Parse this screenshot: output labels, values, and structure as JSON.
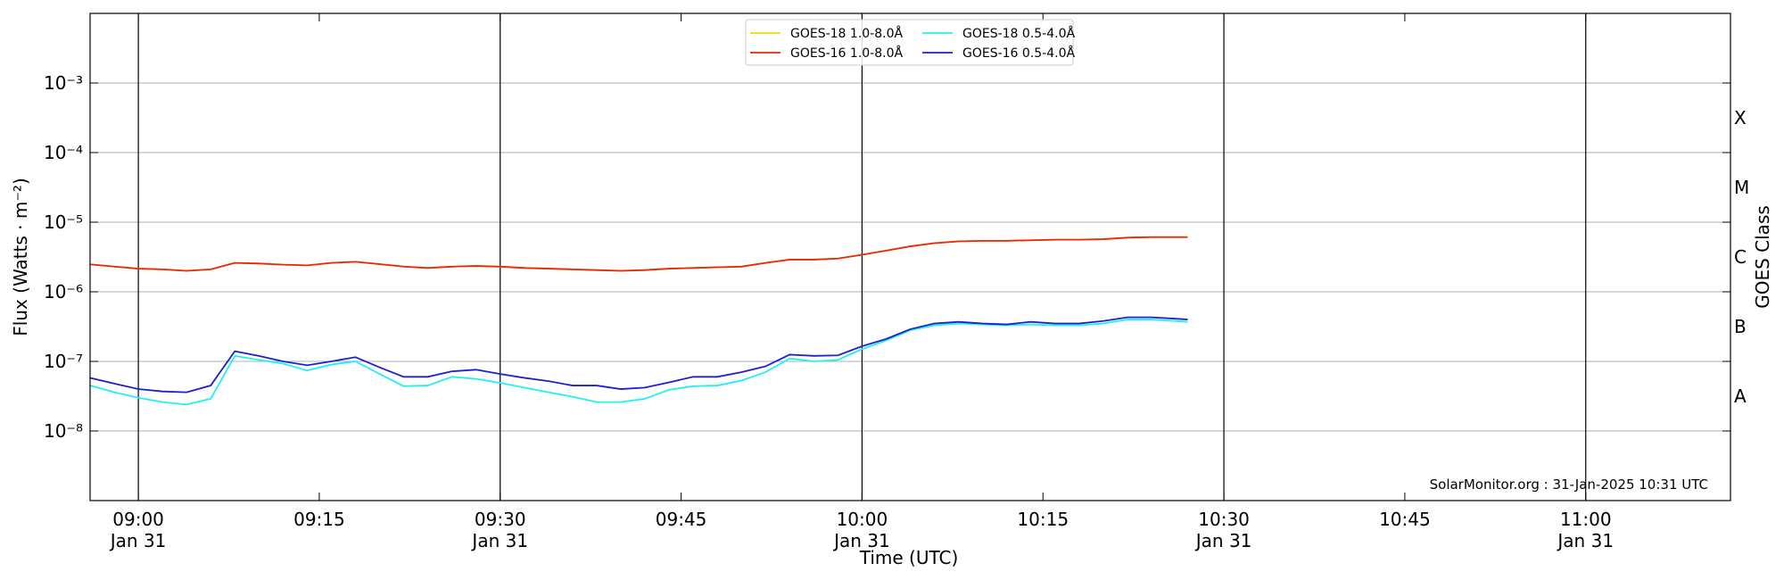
{
  "chart_data": {
    "type": "line",
    "xlabel": "Time (UTC)",
    "ylabel": "Flux (Watts · m⁻²)",
    "y2label": "GOES Class",
    "annotation": "SolarMonitor.org : 31-Jan-2025 10:31 UTC",
    "log_y": true,
    "grid": true,
    "legend": "upper center",
    "xlim": [
      "08:56",
      "11:12"
    ],
    "xticks": [
      {
        "value": "09:00",
        "label": "09:00\nJan 31"
      },
      {
        "value": "09:15",
        "label": "09:15"
      },
      {
        "value": "09:30",
        "label": "09:30\nJan 31"
      },
      {
        "value": "09:45",
        "label": "09:45"
      },
      {
        "value": "10:00",
        "label": "10:00\nJan 31"
      },
      {
        "value": "10:15",
        "label": "10:15"
      },
      {
        "value": "10:30",
        "label": "10:30\nJan 31"
      },
      {
        "value": "10:45",
        "label": "10:45"
      },
      {
        "value": "11:00",
        "label": "11:00\nJan 31"
      }
    ],
    "xgrid": [
      "09:00",
      "09:30",
      "10:00",
      "10:30",
      "11:00"
    ],
    "ylim": [
      1e-09,
      0.01
    ],
    "yticks": [
      {
        "value": 1e-08,
        "label": "10⁻⁸"
      },
      {
        "value": 1e-07,
        "label": "10⁻⁷"
      },
      {
        "value": 1e-06,
        "label": "10⁻⁶"
      },
      {
        "value": 1e-05,
        "label": "10⁻⁵"
      },
      {
        "value": 0.0001,
        "label": "10⁻⁴"
      },
      {
        "value": 0.001,
        "label": "10⁻³"
      }
    ],
    "y2lim": [
      1e-09,
      0.01
    ],
    "y2ticks": [
      {
        "value": 1e-08,
        "label": "A"
      },
      {
        "value": 1e-07,
        "label": "B"
      },
      {
        "value": 1e-06,
        "label": "C"
      },
      {
        "value": 1e-05,
        "label": "M"
      },
      {
        "value": 0.0001,
        "label": "X"
      }
    ],
    "x": [
      "08:56",
      "08:58",
      "09:00",
      "09:02",
      "09:04",
      "09:06",
      "09:08",
      "09:10",
      "09:12",
      "09:14",
      "09:16",
      "09:18",
      "09:20",
      "09:22",
      "09:24",
      "09:26",
      "09:28",
      "09:30",
      "09:32",
      "09:34",
      "09:36",
      "09:38",
      "09:40",
      "09:42",
      "09:44",
      "09:46",
      "09:48",
      "09:50",
      "09:52",
      "09:54",
      "09:56",
      "09:58",
      "10:00",
      "10:02",
      "10:04",
      "10:06",
      "10:08",
      "10:10",
      "10:12",
      "10:14",
      "10:16",
      "10:18",
      "10:20",
      "10:22",
      "10:24",
      "10:26",
      "10:27"
    ],
    "series": [
      {
        "name": "GOES-18 1.0-8.0Å",
        "color": "#ffd700",
        "values": [
          2.48e-06,
          2.3e-06,
          2.15e-06,
          2.1e-06,
          2e-06,
          2.1e-06,
          2.6e-06,
          2.55e-06,
          2.45e-06,
          2.4e-06,
          2.6e-06,
          2.7e-06,
          2.5e-06,
          2.3e-06,
          2.2e-06,
          2.3e-06,
          2.35e-06,
          2.3e-06,
          2.2e-06,
          2.15e-06,
          2.1e-06,
          2.05e-06,
          2e-06,
          2.05e-06,
          2.15e-06,
          2.2e-06,
          2.25e-06,
          2.3e-06,
          2.6e-06,
          2.9e-06,
          2.9e-06,
          3e-06,
          3.4e-06,
          3.9e-06,
          4.5e-06,
          5e-06,
          5.3e-06,
          5.4e-06,
          5.4e-06,
          5.5e-06,
          5.6e-06,
          5.6e-06,
          5.7e-06,
          6e-06,
          6.1e-06,
          6.1e-06,
          6.1e-06
        ]
      },
      {
        "name": "GOES-16 1.0-8.0Å",
        "color": "#e8280c",
        "values": [
          2.48e-06,
          2.3e-06,
          2.15e-06,
          2.1e-06,
          2e-06,
          2.1e-06,
          2.6e-06,
          2.55e-06,
          2.45e-06,
          2.4e-06,
          2.6e-06,
          2.7e-06,
          2.5e-06,
          2.3e-06,
          2.2e-06,
          2.3e-06,
          2.35e-06,
          2.3e-06,
          2.2e-06,
          2.15e-06,
          2.1e-06,
          2.05e-06,
          2e-06,
          2.05e-06,
          2.15e-06,
          2.2e-06,
          2.25e-06,
          2.3e-06,
          2.6e-06,
          2.9e-06,
          2.9e-06,
          3e-06,
          3.4e-06,
          3.9e-06,
          4.5e-06,
          5e-06,
          5.3e-06,
          5.4e-06,
          5.4e-06,
          5.5e-06,
          5.6e-06,
          5.6e-06,
          5.7e-06,
          6e-06,
          6.1e-06,
          6.1e-06,
          6.1e-06
        ]
      },
      {
        "name": "GOES-18 0.5-4.0Å",
        "color": "#22f0f0",
        "values": [
          4.5e-08,
          3.6e-08,
          3e-08,
          2.6e-08,
          2.4e-08,
          2.9e-08,
          1.2e-07,
          1.05e-07,
          9.3e-08,
          7.4e-08,
          9e-08,
          1e-07,
          6.6e-08,
          4.4e-08,
          4.5e-08,
          6e-08,
          5.6e-08,
          4.9e-08,
          4.2e-08,
          3.6e-08,
          3.1e-08,
          2.6e-08,
          2.6e-08,
          2.9e-08,
          3.9e-08,
          4.4e-08,
          4.5e-08,
          5.3e-08,
          7e-08,
          1.1e-07,
          1e-07,
          1.05e-07,
          1.5e-07,
          2e-07,
          2.8e-07,
          3.3e-07,
          3.5e-07,
          3.4e-07,
          3.3e-07,
          3.4e-07,
          3.3e-07,
          3.3e-07,
          3.5e-07,
          4e-07,
          4e-07,
          3.8e-07,
          3.7e-07
        ]
      },
      {
        "name": "GOES-16 0.5-4.0Å",
        "color": "#1f1fd0",
        "values": [
          5.8e-08,
          4.8e-08,
          4e-08,
          3.7e-08,
          3.6e-08,
          4.5e-08,
          1.4e-07,
          1.2e-07,
          1e-07,
          8.8e-08,
          1e-07,
          1.15e-07,
          8.2e-08,
          6e-08,
          6e-08,
          7.2e-08,
          7.6e-08,
          6.6e-08,
          5.8e-08,
          5.2e-08,
          4.5e-08,
          4.5e-08,
          4e-08,
          4.2e-08,
          5e-08,
          6e-08,
          6e-08,
          7e-08,
          8.5e-08,
          1.25e-07,
          1.2e-07,
          1.22e-07,
          1.65e-07,
          2.1e-07,
          2.9e-07,
          3.5e-07,
          3.7e-07,
          3.5e-07,
          3.4e-07,
          3.7e-07,
          3.5e-07,
          3.5e-07,
          3.8e-07,
          4.3e-07,
          4.3e-07,
          4.1e-07,
          4e-07
        ]
      }
    ]
  }
}
